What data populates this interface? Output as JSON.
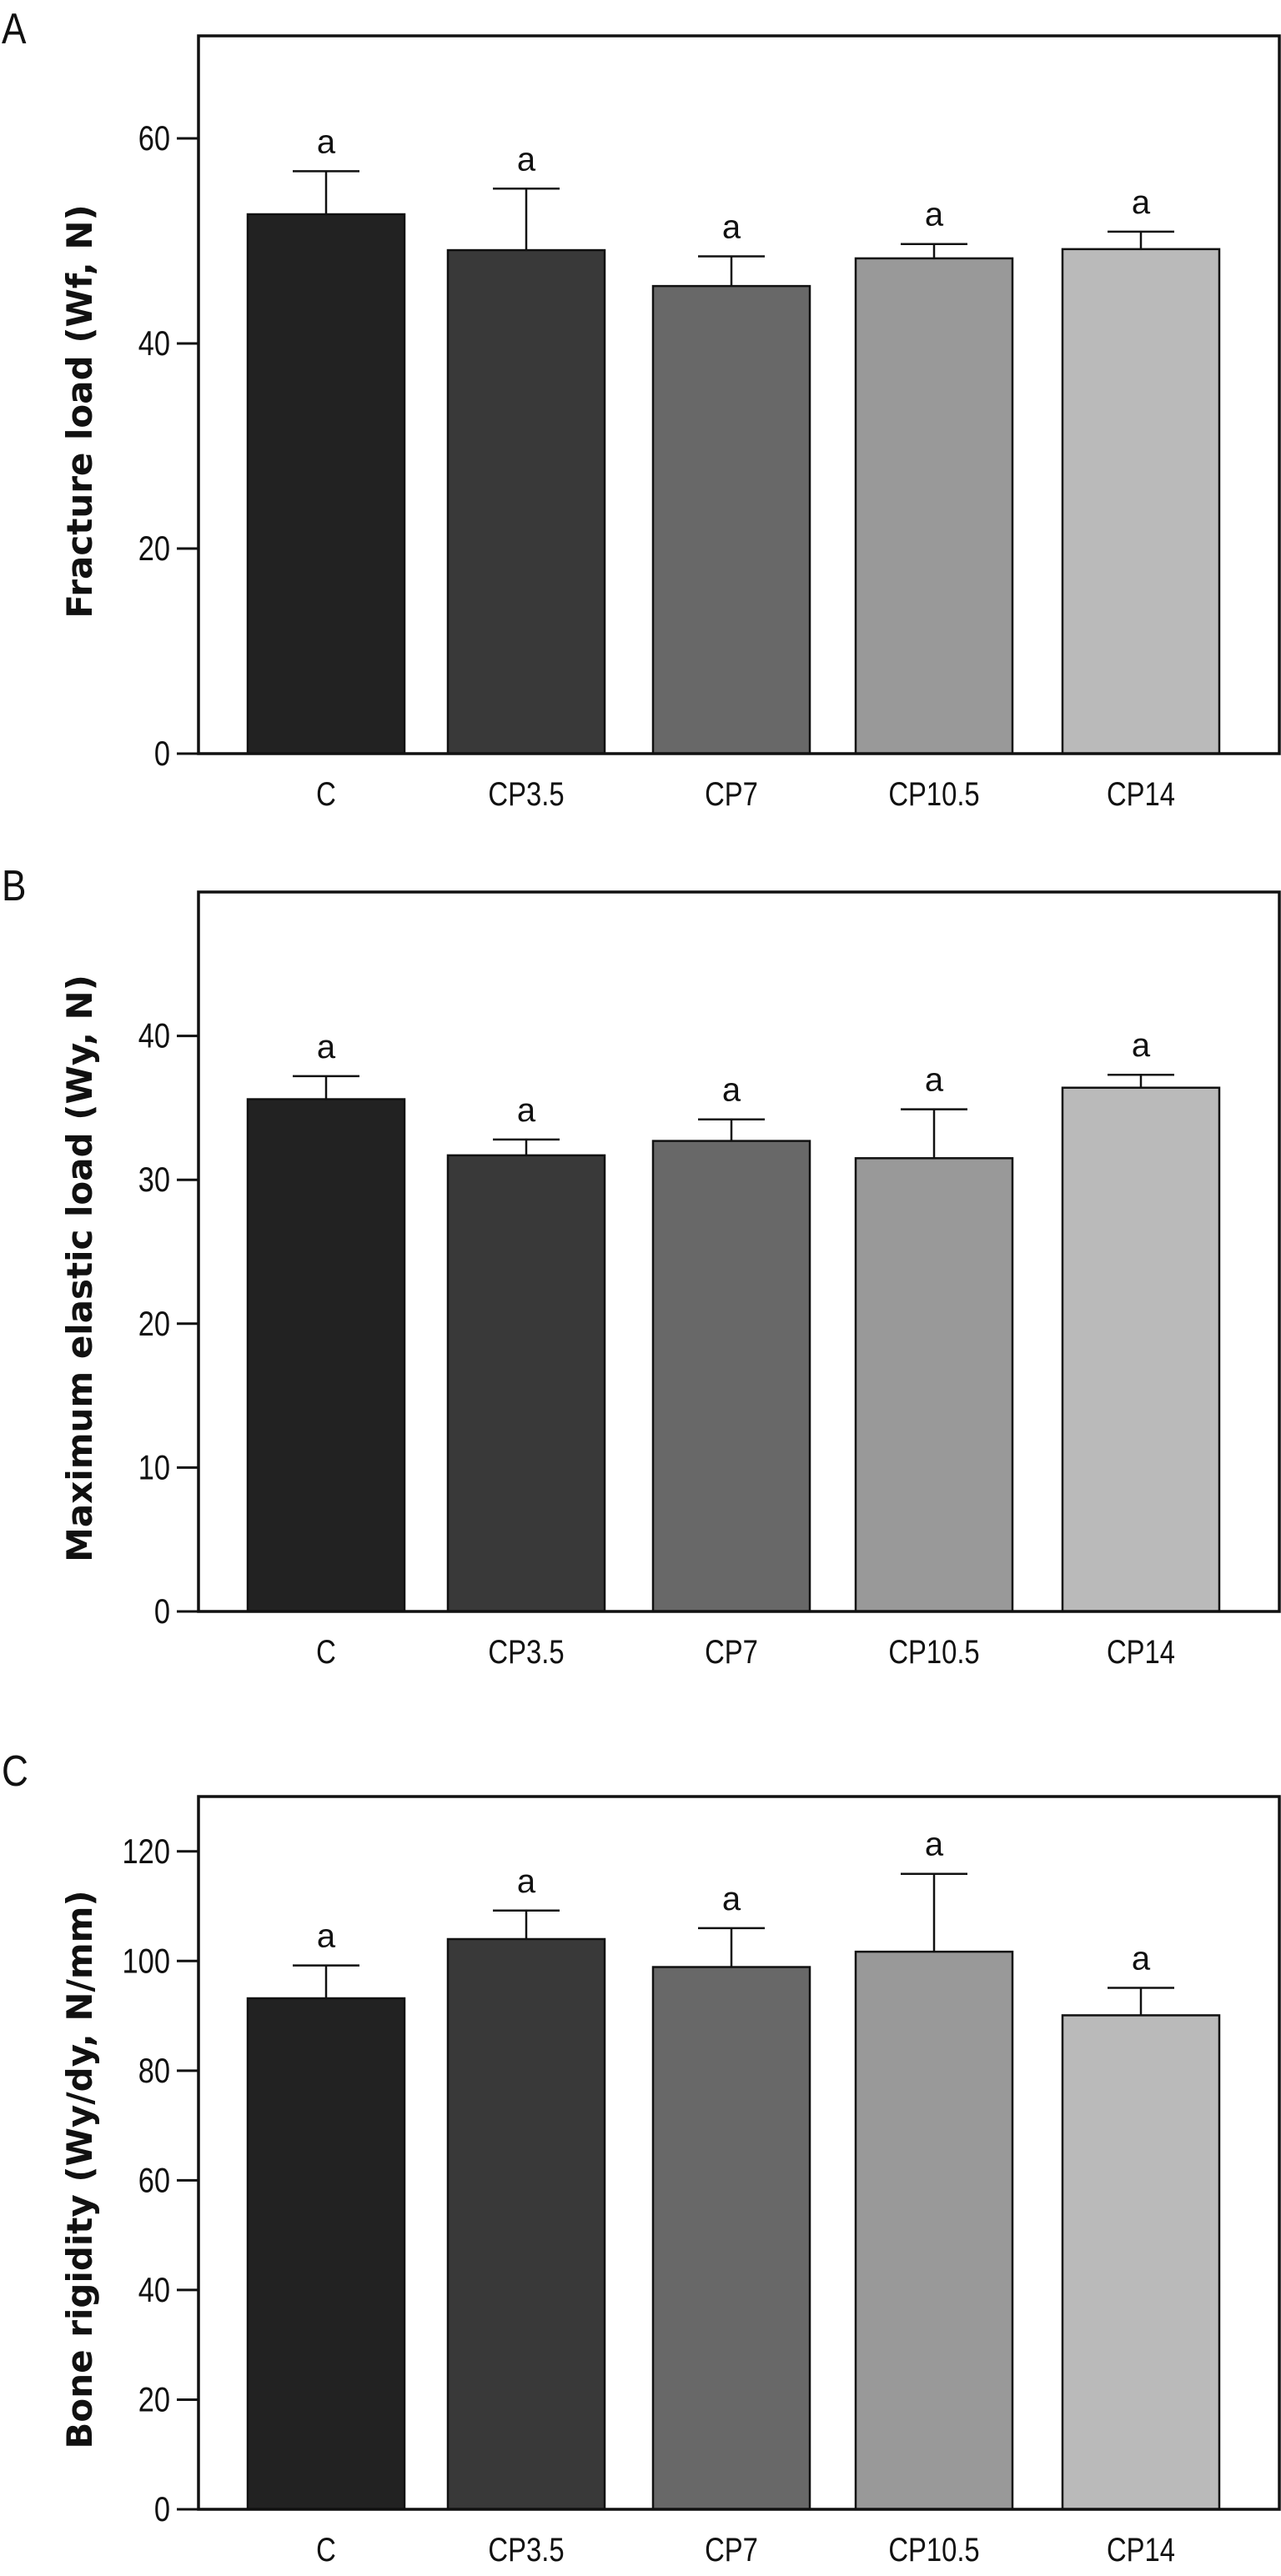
{
  "chart_data": [
    {
      "panel": "A",
      "type": "bar",
      "categories": [
        "C",
        "CP3.5",
        "CP7",
        "CP10.5",
        "CP14"
      ],
      "values": [
        52.6,
        49.1,
        45.6,
        48.3,
        49.2
      ],
      "error_upper": [
        56.8,
        55.1,
        48.5,
        49.7,
        50.9
      ],
      "significance_labels": [
        "a",
        "a",
        "a",
        "a",
        "a"
      ],
      "ylabel": "Fracture load (Wf, N)",
      "xlabel": "",
      "ylim": [
        0,
        70
      ],
      "yticks": [
        0,
        20,
        40,
        60
      ],
      "colors": [
        "#222222",
        "#393939",
        "#686868",
        "#999999",
        "#bababa"
      ],
      "grid": false
    },
    {
      "panel": "B",
      "type": "bar",
      "categories": [
        "C",
        "CP3.5",
        "CP7",
        "CP10.5",
        "CP14"
      ],
      "values": [
        35.6,
        31.7,
        32.7,
        31.5,
        36.4
      ],
      "error_upper": [
        37.2,
        32.8,
        34.2,
        34.9,
        37.3
      ],
      "significance_labels": [
        "a",
        "a",
        "a",
        "a",
        "a"
      ],
      "ylabel": "Maximum elastic load (Wy, N)",
      "xlabel": "",
      "ylim": [
        0,
        50
      ],
      "yticks": [
        0,
        10,
        20,
        30,
        40
      ],
      "colors": [
        "#222222",
        "#393939",
        "#686868",
        "#999999",
        "#bababa"
      ],
      "grid": false
    },
    {
      "panel": "C",
      "type": "bar",
      "categories": [
        "C",
        "CP3.5",
        "CP7",
        "CP10.5",
        "CP14"
      ],
      "values": [
        93.2,
        104.0,
        98.9,
        101.7,
        90.1
      ],
      "error_upper": [
        99.2,
        109.2,
        106.0,
        115.9,
        95.1
      ],
      "significance_labels": [
        "a",
        "a",
        "a",
        "a",
        "a"
      ],
      "ylabel": "Bone rigidity (Wy/dy, N/mm)",
      "xlabel": "",
      "ylim": [
        0,
        130
      ],
      "yticks": [
        0,
        20,
        40,
        60,
        80,
        100,
        120
      ],
      "colors": [
        "#222222",
        "#393939",
        "#686868",
        "#999999",
        "#bababa"
      ],
      "grid": false
    }
  ]
}
